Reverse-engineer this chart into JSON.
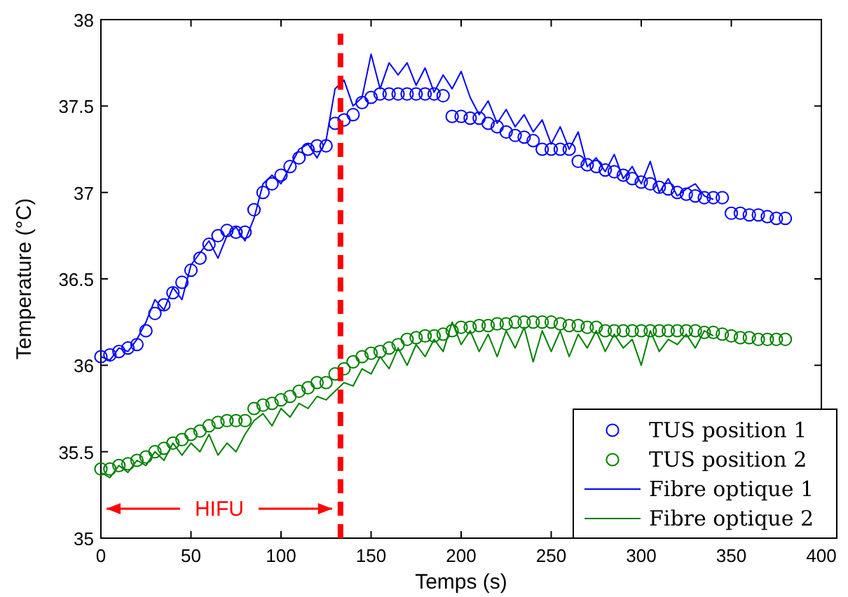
{
  "chart_data": {
    "type": "scatter",
    "xlabel": "Temps (s)",
    "ylabel": "Temperature (°C)",
    "xlim": [
      0,
      400
    ],
    "ylim": [
      35,
      38
    ],
    "xticks": [
      0,
      50,
      100,
      150,
      200,
      250,
      300,
      350,
      400
    ],
    "yticks": [
      35,
      35.5,
      36,
      36.5,
      37,
      37.5,
      38
    ],
    "grid": false,
    "legend": "bottom right",
    "ref_lines": [
      {
        "axis": "x",
        "value": 133,
        "color": "#ff0000",
        "line_style": "dashed"
      }
    ],
    "annotations": [
      "HIFU"
    ],
    "series": [
      {
        "name": "TUS position 1",
        "marker": "circle",
        "color": "#0000ff",
        "x": [
          0,
          5,
          10,
          15,
          20,
          25,
          30,
          35,
          40,
          45,
          50,
          55,
          60,
          65,
          70,
          75,
          80,
          85,
          90,
          95,
          100,
          105,
          110,
          115,
          120,
          125,
          130,
          135,
          140,
          145,
          150,
          155,
          160,
          165,
          170,
          175,
          180,
          185,
          190,
          195,
          200,
          205,
          210,
          215,
          220,
          225,
          230,
          235,
          240,
          245,
          250,
          255,
          260,
          265,
          270,
          275,
          280,
          285,
          290,
          295,
          300,
          305,
          310,
          315,
          320,
          325,
          330,
          335,
          340,
          345,
          350,
          355,
          360,
          365,
          370,
          375,
          380
        ],
        "values": [
          36.05,
          36.06,
          36.08,
          36.1,
          36.12,
          36.2,
          36.3,
          36.35,
          36.42,
          36.48,
          36.55,
          36.62,
          36.7,
          36.75,
          36.78,
          36.77,
          36.77,
          36.9,
          37.0,
          37.05,
          37.1,
          37.15,
          37.2,
          37.25,
          37.27,
          37.27,
          37.4,
          37.42,
          37.45,
          37.52,
          37.55,
          37.57,
          37.57,
          37.57,
          37.57,
          37.57,
          37.57,
          37.57,
          37.56,
          37.44,
          37.44,
          37.43,
          37.43,
          37.4,
          37.38,
          37.35,
          37.33,
          37.32,
          37.3,
          37.25,
          37.25,
          37.25,
          37.25,
          37.18,
          37.16,
          37.15,
          37.13,
          37.12,
          37.1,
          37.08,
          37.06,
          37.05,
          37.03,
          37.02,
          37.0,
          36.99,
          36.98,
          36.97,
          36.97,
          36.97,
          36.88,
          36.88,
          36.87,
          36.87,
          36.86,
          36.85,
          36.85
        ]
      },
      {
        "name": "TUS position 2",
        "marker": "circle",
        "color": "#008000",
        "x": [
          0,
          5,
          10,
          15,
          20,
          25,
          30,
          35,
          40,
          45,
          50,
          55,
          60,
          65,
          70,
          75,
          80,
          85,
          90,
          95,
          100,
          105,
          110,
          115,
          120,
          125,
          130,
          135,
          140,
          145,
          150,
          155,
          160,
          165,
          170,
          175,
          180,
          185,
          190,
          195,
          200,
          205,
          210,
          215,
          220,
          225,
          230,
          235,
          240,
          245,
          250,
          255,
          260,
          265,
          270,
          275,
          280,
          285,
          290,
          295,
          300,
          305,
          310,
          315,
          320,
          325,
          330,
          335,
          340,
          345,
          350,
          355,
          360,
          365,
          370,
          375,
          380
        ],
        "values": [
          35.4,
          35.4,
          35.42,
          35.43,
          35.45,
          35.47,
          35.5,
          35.52,
          35.55,
          35.57,
          35.6,
          35.62,
          35.65,
          35.67,
          35.68,
          35.68,
          35.68,
          35.75,
          35.77,
          35.78,
          35.8,
          35.82,
          35.85,
          35.87,
          35.9,
          35.9,
          35.95,
          35.98,
          36.02,
          36.05,
          36.07,
          36.08,
          36.1,
          36.12,
          36.15,
          36.16,
          36.17,
          36.17,
          36.18,
          36.2,
          36.22,
          36.22,
          36.23,
          36.23,
          36.24,
          36.24,
          36.25,
          36.25,
          36.25,
          36.25,
          36.25,
          36.24,
          36.23,
          36.23,
          36.22,
          36.22,
          36.2,
          36.2,
          36.2,
          36.2,
          36.2,
          36.2,
          36.2,
          36.2,
          36.2,
          36.2,
          36.2,
          36.19,
          36.19,
          36.18,
          36.17,
          36.16,
          36.16,
          36.15,
          36.15,
          36.15,
          36.15
        ]
      },
      {
        "name": "Fibre optique 1",
        "type": "line",
        "line_style": "solid",
        "color": "#0000ff",
        "x": [
          0,
          5,
          10,
          15,
          20,
          25,
          30,
          35,
          40,
          45,
          50,
          55,
          60,
          65,
          70,
          75,
          80,
          85,
          90,
          95,
          100,
          105,
          110,
          115,
          120,
          125,
          130,
          135,
          140,
          145,
          150,
          155,
          160,
          165,
          170,
          175,
          180,
          185,
          190,
          195,
          200,
          205,
          210,
          215,
          220,
          225,
          230,
          235,
          240,
          245,
          250,
          255,
          260,
          265,
          270,
          275,
          280,
          285,
          290,
          295,
          300,
          305,
          310,
          315,
          320,
          325,
          330,
          335,
          340
        ],
        "values": [
          36.05,
          36.03,
          36.1,
          36.08,
          36.15,
          36.25,
          36.38,
          36.32,
          36.45,
          36.38,
          36.58,
          36.65,
          36.72,
          36.62,
          36.75,
          36.8,
          36.72,
          36.85,
          37.05,
          37.1,
          37.05,
          37.15,
          37.25,
          37.28,
          37.2,
          37.3,
          37.6,
          37.65,
          37.5,
          37.55,
          37.8,
          37.6,
          37.75,
          37.68,
          37.75,
          37.62,
          37.72,
          37.58,
          37.68,
          37.6,
          37.7,
          37.55,
          37.45,
          37.53,
          37.4,
          37.48,
          37.38,
          37.45,
          37.35,
          37.42,
          37.28,
          37.38,
          37.25,
          37.35,
          37.15,
          37.2,
          37.12,
          37.22,
          37.08,
          37.15,
          37.05,
          37.18,
          37.0,
          37.08,
          36.98,
          37.02,
          37.05,
          36.98,
          36.96
        ]
      },
      {
        "name": "Fibre optique 2",
        "type": "line",
        "line_style": "solid",
        "color": "#008000",
        "x": [
          0,
          5,
          10,
          15,
          20,
          25,
          30,
          35,
          40,
          45,
          50,
          55,
          60,
          65,
          70,
          75,
          80,
          85,
          90,
          95,
          100,
          105,
          110,
          115,
          120,
          125,
          130,
          135,
          140,
          145,
          150,
          155,
          160,
          165,
          170,
          175,
          180,
          185,
          190,
          195,
          200,
          205,
          210,
          215,
          220,
          225,
          230,
          235,
          240,
          245,
          250,
          255,
          260,
          265,
          270,
          275,
          280,
          285,
          290,
          295,
          300,
          305,
          310,
          315,
          320,
          325,
          330,
          335,
          340
        ],
        "values": [
          35.38,
          35.35,
          35.42,
          35.38,
          35.45,
          35.42,
          35.5,
          35.45,
          35.55,
          35.48,
          35.55,
          35.5,
          35.6,
          35.48,
          35.55,
          35.5,
          35.6,
          35.68,
          35.72,
          35.65,
          35.75,
          35.7,
          35.78,
          35.75,
          35.82,
          35.8,
          35.85,
          35.9,
          35.88,
          35.98,
          35.95,
          36.05,
          35.98,
          36.1,
          36.0,
          36.12,
          36.05,
          36.15,
          36.08,
          36.25,
          36.12,
          36.2,
          36.08,
          36.18,
          36.05,
          36.2,
          36.1,
          36.22,
          36.02,
          36.2,
          36.08,
          36.2,
          36.05,
          36.18,
          36.1,
          36.2,
          36.08,
          36.18,
          36.1,
          36.15,
          36.0,
          36.2,
          36.08,
          36.15,
          36.12,
          36.18,
          36.1,
          36.2,
          36.17
        ]
      }
    ]
  }
}
